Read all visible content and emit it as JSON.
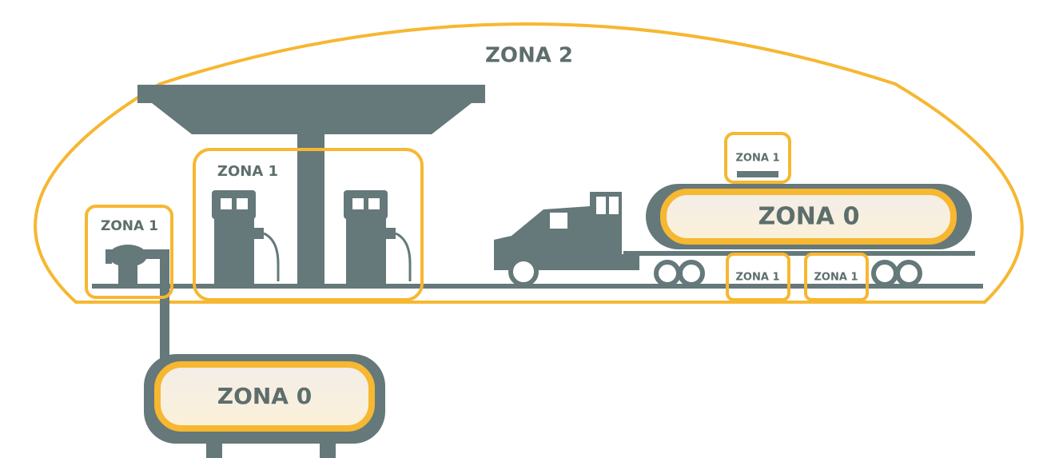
{
  "zones": [
    {
      "label": "ZONA 2"
    },
    {
      "label": "ZONA 1"
    },
    {
      "label": "ZONA 1"
    },
    {
      "label": "ZONA 1"
    },
    {
      "label": "ZONA 0"
    },
    {
      "label": "ZONA 1"
    },
    {
      "label": "ZONA 1"
    },
    {
      "label": "ZONA 0"
    }
  ]
}
